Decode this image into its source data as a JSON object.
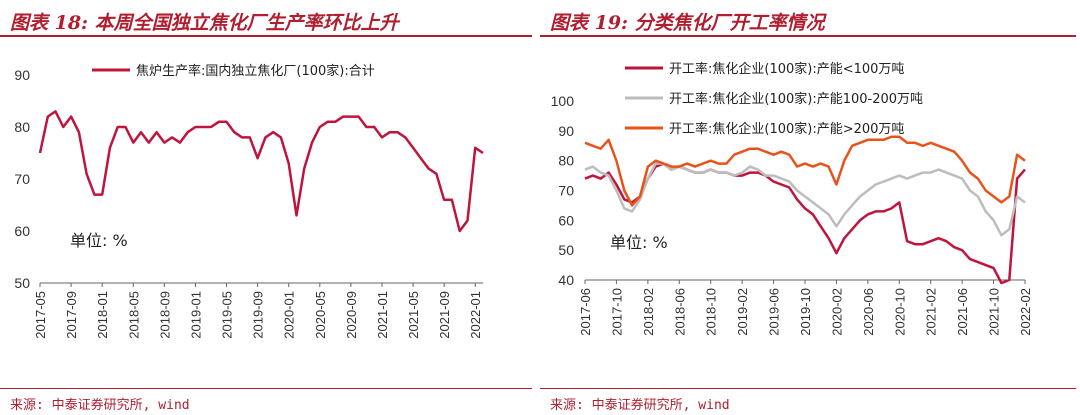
{
  "left": {
    "title": "图表 18: 本周全国独立焦化厂生产率环比上升",
    "source": "来源: 中泰证券研究所, wind"
  },
  "right": {
    "title": "图表 19: 分类焦化厂开工率情况",
    "source": "来源: 中泰证券研究所, wind"
  },
  "chart_data": [
    {
      "type": "line",
      "title": "本周全国独立焦化厂生产率环比上升",
      "unit_label": "单位: %",
      "ylim": [
        50,
        90
      ],
      "yticks": [
        50,
        60,
        70,
        80,
        90
      ],
      "x_start": "2017-05",
      "x_end": "2022-02",
      "xticks": [
        "2017-05",
        "2017-09",
        "2018-01",
        "2018-05",
        "2018-09",
        "2019-01",
        "2019-05",
        "2019-09",
        "2020-01",
        "2020-05",
        "2020-09",
        "2021-01",
        "2021-05",
        "2021-09",
        "2022-01"
      ],
      "colors": [
        "#c0143c"
      ],
      "series": [
        {
          "name": "焦炉生产率:国内独立焦化厂(100家):合计",
          "color": "#c0143c",
          "points": [
            [
              "2017-05",
              75
            ],
            [
              "2017-06",
              82
            ],
            [
              "2017-07",
              83
            ],
            [
              "2017-08",
              80
            ],
            [
              "2017-09",
              82
            ],
            [
              "2017-10",
              79
            ],
            [
              "2017-11",
              71
            ],
            [
              "2017-12",
              67
            ],
            [
              "2018-01",
              67
            ],
            [
              "2018-02",
              76
            ],
            [
              "2018-03",
              80
            ],
            [
              "2018-04",
              80
            ],
            [
              "2018-05",
              77
            ],
            [
              "2018-06",
              79
            ],
            [
              "2018-07",
              77
            ],
            [
              "2018-08",
              79
            ],
            [
              "2018-09",
              77
            ],
            [
              "2018-10",
              78
            ],
            [
              "2018-11",
              77
            ],
            [
              "2018-12",
              79
            ],
            [
              "2019-01",
              80
            ],
            [
              "2019-02",
              80
            ],
            [
              "2019-03",
              80
            ],
            [
              "2019-04",
              81
            ],
            [
              "2019-05",
              81
            ],
            [
              "2019-06",
              79
            ],
            [
              "2019-07",
              78
            ],
            [
              "2019-08",
              78
            ],
            [
              "2019-09",
              74
            ],
            [
              "2019-10",
              78
            ],
            [
              "2019-11",
              79
            ],
            [
              "2019-12",
              78
            ],
            [
              "2020-01",
              73
            ],
            [
              "2020-02",
              63
            ],
            [
              "2020-03",
              72
            ],
            [
              "2020-04",
              77
            ],
            [
              "2020-05",
              80
            ],
            [
              "2020-06",
              81
            ],
            [
              "2020-07",
              81
            ],
            [
              "2020-08",
              82
            ],
            [
              "2020-09",
              82
            ],
            [
              "2020-10",
              82
            ],
            [
              "2020-11",
              80
            ],
            [
              "2020-12",
              80
            ],
            [
              "2021-01",
              78
            ],
            [
              "2021-02",
              79
            ],
            [
              "2021-03",
              79
            ],
            [
              "2021-04",
              78
            ],
            [
              "2021-05",
              76
            ],
            [
              "2021-06",
              74
            ],
            [
              "2021-07",
              72
            ],
            [
              "2021-08",
              71
            ],
            [
              "2021-09",
              66
            ],
            [
              "2021-10",
              66
            ],
            [
              "2021-11",
              60
            ],
            [
              "2021-12",
              62
            ],
            [
              "2022-01",
              76
            ],
            [
              "2022-02",
              75
            ]
          ]
        }
      ]
    },
    {
      "type": "line",
      "title": "分类焦化厂开工率情况",
      "unit_label": "单位: %",
      "ylim": [
        40,
        100
      ],
      "yticks": [
        40,
        50,
        60,
        70,
        80,
        90,
        100
      ],
      "x_start": "2017-06",
      "x_end": "2022-02",
      "xticks": [
        "2017-06",
        "2017-10",
        "2018-02",
        "2018-06",
        "2018-10",
        "2019-02",
        "2019-06",
        "2019-10",
        "2020-02",
        "2020-06",
        "2020-10",
        "2021-02",
        "2021-06",
        "2021-10",
        "2022-02"
      ],
      "series": [
        {
          "name": "开工率:焦化企业(100家):产能<100万吨",
          "color": "#c0143c",
          "points": [
            [
              "2017-06",
              74
            ],
            [
              "2017-07",
              75
            ],
            [
              "2017-08",
              74
            ],
            [
              "2017-09",
              76
            ],
            [
              "2017-10",
              72
            ],
            [
              "2017-11",
              67
            ],
            [
              "2017-12",
              66
            ],
            [
              "2018-01",
              68
            ],
            [
              "2018-02",
              74
            ],
            [
              "2018-03",
              78
            ],
            [
              "2018-04",
              79
            ],
            [
              "2018-05",
              77
            ],
            [
              "2018-06",
              78
            ],
            [
              "2018-07",
              77
            ],
            [
              "2018-08",
              76
            ],
            [
              "2018-09",
              76
            ],
            [
              "2018-10",
              77
            ],
            [
              "2018-11",
              76
            ],
            [
              "2018-12",
              76
            ],
            [
              "2019-01",
              75
            ],
            [
              "2019-02",
              75
            ],
            [
              "2019-03",
              76
            ],
            [
              "2019-04",
              76
            ],
            [
              "2019-05",
              75
            ],
            [
              "2019-06",
              73
            ],
            [
              "2019-07",
              72
            ],
            [
              "2019-08",
              71
            ],
            [
              "2019-09",
              67
            ],
            [
              "2019-10",
              64
            ],
            [
              "2019-11",
              62
            ],
            [
              "2019-12",
              58
            ],
            [
              "2020-01",
              54
            ],
            [
              "2020-02",
              49
            ],
            [
              "2020-03",
              54
            ],
            [
              "2020-04",
              57
            ],
            [
              "2020-05",
              60
            ],
            [
              "2020-06",
              62
            ],
            [
              "2020-07",
              63
            ],
            [
              "2020-08",
              63
            ],
            [
              "2020-09",
              64
            ],
            [
              "2020-10",
              66
            ],
            [
              "2020-11",
              53
            ],
            [
              "2020-12",
              52
            ],
            [
              "2021-01",
              52
            ],
            [
              "2021-02",
              53
            ],
            [
              "2021-03",
              54
            ],
            [
              "2021-04",
              53
            ],
            [
              "2021-05",
              51
            ],
            [
              "2021-06",
              50
            ],
            [
              "2021-07",
              47
            ],
            [
              "2021-08",
              46
            ],
            [
              "2021-09",
              45
            ],
            [
              "2021-10",
              44
            ],
            [
              "2021-11",
              39
            ],
            [
              "2021-12",
              40
            ],
            [
              "2022-01",
              74
            ],
            [
              "2022-02",
              77
            ]
          ]
        },
        {
          "name": "开工率:焦化企业(100家):产能100-200万吨",
          "color": "#bdbdbd",
          "points": [
            [
              "2017-06",
              77
            ],
            [
              "2017-07",
              78
            ],
            [
              "2017-08",
              76
            ],
            [
              "2017-09",
              75
            ],
            [
              "2017-10",
              70
            ],
            [
              "2017-11",
              64
            ],
            [
              "2017-12",
              63
            ],
            [
              "2018-01",
              67
            ],
            [
              "2018-02",
              74
            ],
            [
              "2018-03",
              79
            ],
            [
              "2018-04",
              79
            ],
            [
              "2018-05",
              77
            ],
            [
              "2018-06",
              78
            ],
            [
              "2018-07",
              77
            ],
            [
              "2018-08",
              76
            ],
            [
              "2018-09",
              76
            ],
            [
              "2018-10",
              77
            ],
            [
              "2018-11",
              76
            ],
            [
              "2018-12",
              76
            ],
            [
              "2019-01",
              75
            ],
            [
              "2019-02",
              76
            ],
            [
              "2019-03",
              78
            ],
            [
              "2019-04",
              77
            ],
            [
              "2019-05",
              75
            ],
            [
              "2019-06",
              75
            ],
            [
              "2019-07",
              74
            ],
            [
              "2019-08",
              73
            ],
            [
              "2019-09",
              70
            ],
            [
              "2019-10",
              68
            ],
            [
              "2019-11",
              66
            ],
            [
              "2019-12",
              64
            ],
            [
              "2020-01",
              62
            ],
            [
              "2020-02",
              58
            ],
            [
              "2020-03",
              62
            ],
            [
              "2020-04",
              65
            ],
            [
              "2020-05",
              68
            ],
            [
              "2020-06",
              70
            ],
            [
              "2020-07",
              72
            ],
            [
              "2020-08",
              73
            ],
            [
              "2020-09",
              74
            ],
            [
              "2020-10",
              75
            ],
            [
              "2020-11",
              74
            ],
            [
              "2020-12",
              75
            ],
            [
              "2021-01",
              76
            ],
            [
              "2021-02",
              76
            ],
            [
              "2021-03",
              77
            ],
            [
              "2021-04",
              76
            ],
            [
              "2021-05",
              75
            ],
            [
              "2021-06",
              74
            ],
            [
              "2021-07",
              70
            ],
            [
              "2021-08",
              68
            ],
            [
              "2021-09",
              63
            ],
            [
              "2021-10",
              60
            ],
            [
              "2021-11",
              55
            ],
            [
              "2021-12",
              57
            ],
            [
              "2022-01",
              68
            ],
            [
              "2022-02",
              66
            ]
          ]
        },
        {
          "name": "开工率:焦化企业(100家):产能>200万吨",
          "color": "#e8531c",
          "points": [
            [
              "2017-06",
              86
            ],
            [
              "2017-07",
              85
            ],
            [
              "2017-08",
              84
            ],
            [
              "2017-09",
              87
            ],
            [
              "2017-10",
              80
            ],
            [
              "2017-11",
              70
            ],
            [
              "2017-12",
              65
            ],
            [
              "2018-01",
              68
            ],
            [
              "2018-02",
              78
            ],
            [
              "2018-03",
              80
            ],
            [
              "2018-04",
              79
            ],
            [
              "2018-05",
              78
            ],
            [
              "2018-06",
              78
            ],
            [
              "2018-07",
              79
            ],
            [
              "2018-08",
              78
            ],
            [
              "2018-09",
              79
            ],
            [
              "2018-10",
              80
            ],
            [
              "2018-11",
              79
            ],
            [
              "2018-12",
              79
            ],
            [
              "2019-01",
              82
            ],
            [
              "2019-02",
              83
            ],
            [
              "2019-03",
              84
            ],
            [
              "2019-04",
              84
            ],
            [
              "2019-05",
              83
            ],
            [
              "2019-06",
              82
            ],
            [
              "2019-07",
              83
            ],
            [
              "2019-08",
              82
            ],
            [
              "2019-09",
              78
            ],
            [
              "2019-10",
              79
            ],
            [
              "2019-11",
              78
            ],
            [
              "2019-12",
              79
            ],
            [
              "2020-01",
              78
            ],
            [
              "2020-02",
              72
            ],
            [
              "2020-03",
              80
            ],
            [
              "2020-04",
              85
            ],
            [
              "2020-05",
              86
            ],
            [
              "2020-06",
              87
            ],
            [
              "2020-07",
              87
            ],
            [
              "2020-08",
              87
            ],
            [
              "2020-09",
              88
            ],
            [
              "2020-10",
              88
            ],
            [
              "2020-11",
              86
            ],
            [
              "2020-12",
              86
            ],
            [
              "2021-01",
              85
            ],
            [
              "2021-02",
              86
            ],
            [
              "2021-03",
              85
            ],
            [
              "2021-04",
              84
            ],
            [
              "2021-05",
              83
            ],
            [
              "2021-06",
              80
            ],
            [
              "2021-07",
              76
            ],
            [
              "2021-08",
              74
            ],
            [
              "2021-09",
              70
            ],
            [
              "2021-10",
              68
            ],
            [
              "2021-11",
              66
            ],
            [
              "2021-12",
              68
            ],
            [
              "2022-01",
              82
            ],
            [
              "2022-02",
              80
            ]
          ]
        }
      ]
    }
  ]
}
